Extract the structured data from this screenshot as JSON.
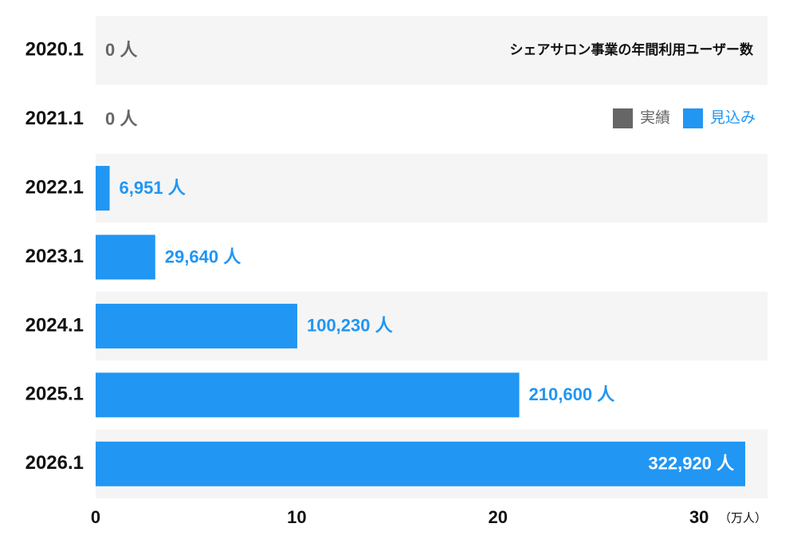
{
  "chart_data": {
    "type": "barh",
    "title": "シェアサロン事業の年間利用ユーザー数",
    "categories": [
      "2020.1",
      "2021.1",
      "2022.1",
      "2023.1",
      "2024.1",
      "2025.1",
      "2026.1"
    ],
    "series": [
      {
        "name": "実績",
        "color": "#666666",
        "values": [
          0,
          0,
          null,
          null,
          null,
          null,
          null
        ],
        "value_labels": [
          "0 人",
          "0 人",
          null,
          null,
          null,
          null,
          null
        ]
      },
      {
        "name": "見込み",
        "color": "#2196f3",
        "values": [
          null,
          null,
          0.6951,
          2.964,
          10.023,
          21.06,
          32.292
        ],
        "value_labels": [
          null,
          null,
          "6,951 人",
          "29,640 人",
          "100,230 人",
          "210,600 人",
          "322,920 人"
        ]
      }
    ],
    "x_unit": "（万人）",
    "xlim": [
      0,
      33.4
    ],
    "xticks": [
      0,
      10,
      20,
      30
    ],
    "legend": "top-right"
  }
}
